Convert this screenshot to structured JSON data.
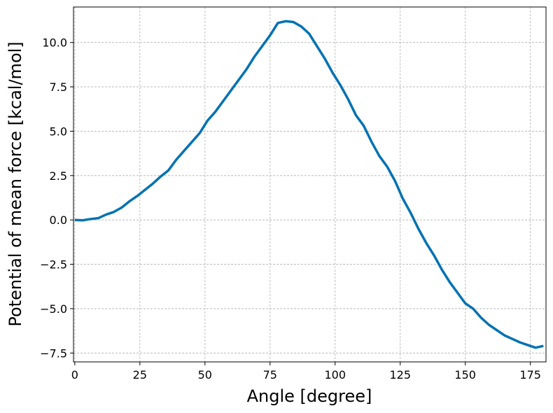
{
  "chart_data": {
    "type": "line",
    "x_label": "Angle [degree]",
    "y_label": "Potential of mean force [kcal/mol]",
    "x": [
      0,
      3,
      6,
      9,
      12,
      15,
      18,
      21,
      24,
      27,
      30,
      33,
      36,
      39,
      42,
      45,
      48,
      51,
      54,
      57,
      60,
      63,
      66,
      69,
      72,
      75,
      78,
      81,
      84,
      87,
      90,
      93,
      96,
      99,
      102,
      105,
      108,
      111,
      114,
      117,
      120,
      123,
      126,
      129,
      132,
      135,
      138,
      141,
      144,
      147,
      150,
      153,
      156,
      159,
      162,
      165,
      168,
      171,
      174,
      177,
      180
    ],
    "values": [
      0.0,
      -0.02,
      0.05,
      0.1,
      0.3,
      0.45,
      0.7,
      1.05,
      1.35,
      1.7,
      2.05,
      2.45,
      2.8,
      3.4,
      3.9,
      4.4,
      4.9,
      5.6,
      6.1,
      6.7,
      7.3,
      7.9,
      8.5,
      9.2,
      9.8,
      10.4,
      11.1,
      11.2,
      11.15,
      10.9,
      10.5,
      9.8,
      9.1,
      8.3,
      7.6,
      6.8,
      5.9,
      5.3,
      4.4,
      3.6,
      3.0,
      2.2,
      1.2,
      0.4,
      -0.5,
      -1.3,
      -2.0,
      -2.8,
      -3.5,
      -4.1,
      -4.7,
      -5.0,
      -5.5,
      -5.9,
      -6.2,
      -6.5,
      -6.7,
      -6.9,
      -7.05,
      -7.2,
      -7.1
    ],
    "color": "#0072b2",
    "xlim": [
      -0.5,
      181
    ],
    "xticks": [
      0,
      25,
      50,
      75,
      100,
      125,
      150,
      175
    ],
    "ylim": [
      -8,
      12
    ],
    "yticks": [
      {
        "value": -7.5,
        "label": "−7.5"
      },
      {
        "value": -5,
        "label": "−5.0"
      },
      {
        "value": -2.5,
        "label": "−2.5"
      },
      {
        "value": 0,
        "label": "0.0"
      },
      {
        "value": 2.5,
        "label": "2.5"
      },
      {
        "value": 5,
        "label": "5.0"
      },
      {
        "value": 7.5,
        "label": "7.5"
      },
      {
        "value": 10,
        "label": "10.0"
      }
    ],
    "grid": true
  }
}
